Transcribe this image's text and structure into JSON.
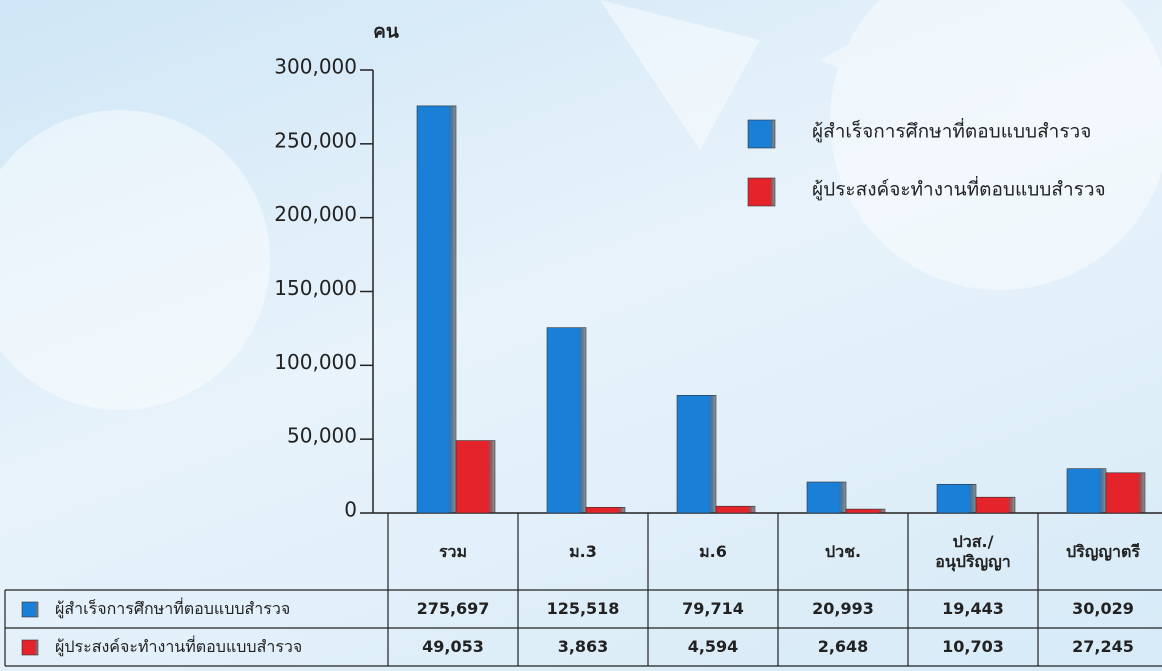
{
  "chart_data": {
    "type": "bar",
    "y_axis_label": "คน",
    "categories": [
      "รวม",
      "ม.3",
      "ม.6",
      "ปวช.",
      "ปวส./\nอนุปริญญา",
      "ปริญญาตรี"
    ],
    "series": [
      {
        "name": "ผู้สำเร็จการศึกษาที่ตอบแบบสำรวจ",
        "color": "#1a7fd6",
        "values": [
          275697,
          125518,
          79714,
          20993,
          19443,
          30029
        ],
        "value_labels": [
          "275,697",
          "125,518",
          "79,714",
          "20,993",
          "19,443",
          "30,029"
        ]
      },
      {
        "name": "ผู้ประสงค์จะทำงานที่ตอบแบบสำรวจ",
        "color": "#e5232b",
        "values": [
          49053,
          3863,
          4594,
          2648,
          10703,
          27245
        ],
        "value_labels": [
          "49,053",
          "3,863",
          "4,594",
          "2,648",
          "10,703",
          "27,245"
        ]
      }
    ],
    "ylim": [
      0,
      300000
    ],
    "yticks": [
      0,
      {
        "value": 50000,
        "label": "50,000"
      },
      {
        "value": 100000,
        "label": "100,000"
      },
      {
        "value": 150000,
        "label": "150,000"
      },
      {
        "value": 200000,
        "label": "200,000"
      },
      {
        "value": 250000,
        "label": "250,000"
      },
      {
        "value": 300000,
        "label": "300,000"
      }
    ],
    "legend": "top-right"
  }
}
